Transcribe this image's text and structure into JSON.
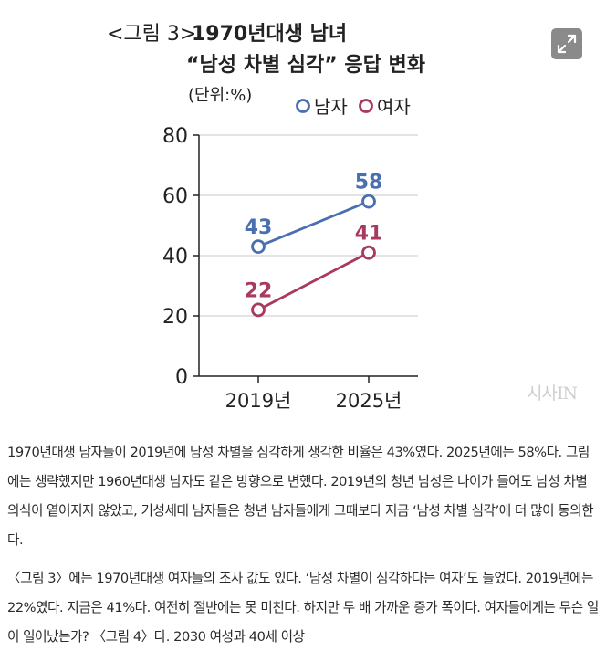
{
  "chart_data": {
    "type": "line",
    "title_prefix": "<그림 3>",
    "title_line1": "1970년대생 남녀",
    "title_line2": "“남성 차별 심각” 응답 변화",
    "unit": "(단위:%)",
    "categories": [
      "2019년",
      "2025년"
    ],
    "ylim": [
      0,
      80
    ],
    "yticks": [
      "0",
      "20",
      "40",
      "60",
      "80"
    ],
    "series": [
      {
        "name": "남자",
        "color": "#4a6fb0",
        "values": [
          43,
          58
        ]
      },
      {
        "name": "여자",
        "color": "#a83a5e",
        "values": [
          22,
          41
        ]
      }
    ],
    "grid": true,
    "legend": "top-right"
  },
  "ui": {
    "expand_icon": "expand-icon",
    "watermark": "시사IN"
  },
  "article": {
    "p1": "1970년대생 남자들이 2019년에 남성 차별을 심각하게 생각한 비율은 43%였다. 2025년에는 58%다. 그림에는 생략했지만 1960년대생 남자도 같은 방향으로 변했다. 2019년의 청년 남성은 나이가 들어도 남성 차별 의식이 옅어지지 않았고, 기성세대 남자들은 청년 남자들에게 그때보다 지금 ‘남성 차별 심각’에 더 많이 동의한다.",
    "p2": "〈그림 3〉에는 1970년대생 여자들의 조사 값도 있다. ‘남성 차별이 심각하다는 여자’도 늘었다. 2019년에는 22%였다. 지금은 41%다. 여전히 절반에는 못 미친다. 하지만 두 배 가까운 증가 폭이다. 여자들에게는 무슨 일이 일어났는가? 〈그림 4〉다. 2030 여성과 40세 이상"
  }
}
